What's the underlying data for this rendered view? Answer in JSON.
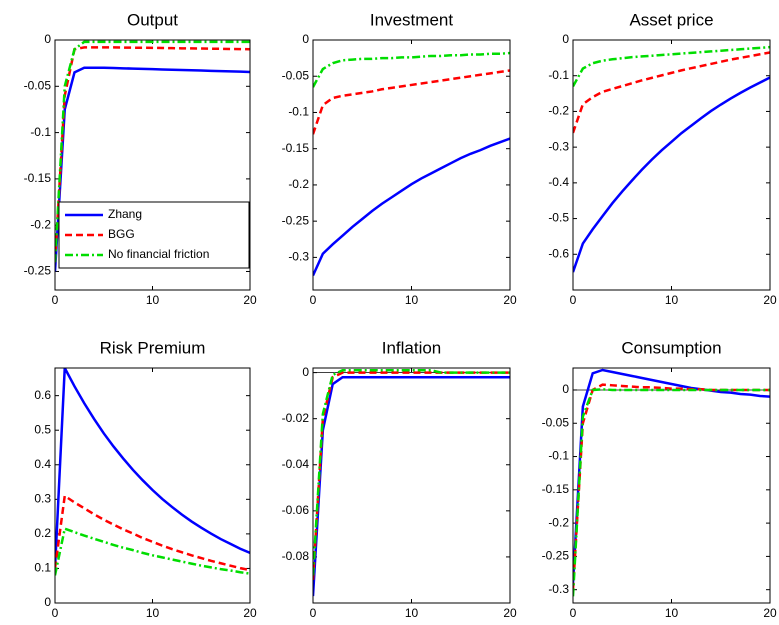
{
  "chart_data": [
    {
      "type": "line",
      "title": "Output",
      "xlim": [
        0,
        20
      ],
      "xticks": [
        0,
        10,
        20
      ],
      "ylim": [
        -0.27,
        0
      ],
      "yticks": [
        0,
        -0.05,
        -0.1,
        -0.15,
        -0.2,
        -0.25
      ],
      "legend": "lower left",
      "x": [
        0,
        1,
        2,
        3,
        4,
        5,
        6,
        7,
        8,
        9,
        10,
        11,
        12,
        13,
        14,
        15,
        16,
        17,
        18,
        19,
        20
      ],
      "series": [
        {
          "name": "Zhang",
          "color": "#0000ff",
          "style": "solid",
          "values": [
            -0.25,
            -0.075,
            -0.035,
            -0.03,
            -0.03,
            -0.03,
            -0.0303,
            -0.0306,
            -0.0309,
            -0.0312,
            -0.0315,
            -0.0318,
            -0.0321,
            -0.0324,
            -0.0327,
            -0.033,
            -0.0333,
            -0.0336,
            -0.0339,
            -0.0342,
            -0.0345
          ]
        },
        {
          "name": "BGG",
          "color": "#ff0000",
          "style": "dashed",
          "values": [
            -0.24,
            -0.06,
            -0.01,
            -0.008,
            -0.008,
            -0.008,
            -0.008,
            -0.0082,
            -0.0083,
            -0.0084,
            -0.0085,
            -0.0086,
            -0.0088,
            -0.009,
            -0.0091,
            -0.0092,
            -0.0094,
            -0.0095,
            -0.0097,
            -0.0098,
            -0.01
          ]
        },
        {
          "name": "No financial friction",
          "color": "#00dd00",
          "style": "dashdot",
          "values": [
            -0.24,
            -0.05,
            -0.01,
            -0.002,
            -0.002,
            -0.002,
            -0.002,
            -0.002,
            -0.002,
            -0.002,
            -0.002,
            -0.002,
            -0.002,
            -0.002,
            -0.002,
            -0.002,
            -0.002,
            -0.002,
            -0.002,
            -0.002,
            -0.002
          ]
        }
      ]
    },
    {
      "type": "line",
      "title": "Investment",
      "xlim": [
        0,
        20
      ],
      "xticks": [
        0,
        10,
        20
      ],
      "ylim": [
        -0.345,
        0
      ],
      "yticks": [
        0,
        -0.05,
        -0.1,
        -0.15,
        -0.2,
        -0.25,
        -0.3
      ],
      "x": [
        0,
        1,
        2,
        3,
        4,
        5,
        6,
        7,
        8,
        9,
        10,
        11,
        12,
        13,
        14,
        15,
        16,
        17,
        18,
        19,
        20
      ],
      "series": [
        {
          "color": "#0000ff",
          "style": "solid",
          "values": [
            -0.325,
            -0.295,
            -0.282,
            -0.27,
            -0.258,
            -0.247,
            -0.236,
            -0.226,
            -0.217,
            -0.208,
            -0.199,
            -0.191,
            -0.184,
            -0.177,
            -0.17,
            -0.163,
            -0.157,
            -0.152,
            -0.146,
            -0.141,
            -0.136
          ]
        },
        {
          "color": "#ff0000",
          "style": "dashed",
          "values": [
            -0.13,
            -0.09,
            -0.08,
            -0.077,
            -0.075,
            -0.073,
            -0.071,
            -0.068,
            -0.066,
            -0.064,
            -0.062,
            -0.06,
            -0.058,
            -0.056,
            -0.054,
            -0.052,
            -0.05,
            -0.048,
            -0.046,
            -0.044,
            -0.042
          ]
        },
        {
          "color": "#00dd00",
          "style": "dashdot",
          "values": [
            -0.065,
            -0.04,
            -0.032,
            -0.028,
            -0.027,
            -0.026,
            -0.026,
            -0.025,
            -0.025,
            -0.024,
            -0.024,
            -0.023,
            -0.022,
            -0.022,
            -0.021,
            -0.021,
            -0.02,
            -0.02,
            -0.019,
            -0.019,
            -0.018
          ]
        }
      ]
    },
    {
      "type": "line",
      "title": "Asset price",
      "xlim": [
        0,
        20
      ],
      "xticks": [
        0,
        10,
        20
      ],
      "ylim": [
        -0.7,
        0
      ],
      "yticks": [
        0,
        -0.1,
        -0.2,
        -0.3,
        -0.4,
        -0.5,
        -0.6
      ],
      "x": [
        0,
        1,
        2,
        3,
        4,
        5,
        6,
        7,
        8,
        9,
        10,
        11,
        12,
        13,
        14,
        15,
        16,
        17,
        18,
        19,
        20
      ],
      "series": [
        {
          "color": "#0000ff",
          "style": "solid",
          "values": [
            -0.65,
            -0.57,
            -0.53,
            -0.493,
            -0.457,
            -0.424,
            -0.393,
            -0.363,
            -0.335,
            -0.309,
            -0.285,
            -0.261,
            -0.24,
            -0.219,
            -0.199,
            -0.181,
            -0.164,
            -0.148,
            -0.133,
            -0.119,
            -0.105
          ]
        },
        {
          "color": "#ff0000",
          "style": "dashed",
          "values": [
            -0.26,
            -0.18,
            -0.16,
            -0.145,
            -0.137,
            -0.129,
            -0.121,
            -0.113,
            -0.106,
            -0.099,
            -0.092,
            -0.085,
            -0.079,
            -0.073,
            -0.067,
            -0.061,
            -0.055,
            -0.05,
            -0.045,
            -0.04,
            -0.035
          ]
        },
        {
          "color": "#00dd00",
          "style": "dashdot",
          "values": [
            -0.13,
            -0.08,
            -0.065,
            -0.058,
            -0.054,
            -0.051,
            -0.048,
            -0.046,
            -0.044,
            -0.042,
            -0.04,
            -0.038,
            -0.036,
            -0.034,
            -0.032,
            -0.03,
            -0.028,
            -0.026,
            -0.024,
            -0.022,
            -0.02
          ]
        }
      ]
    },
    {
      "type": "line",
      "title": "Risk Premium",
      "xlim": [
        0,
        20
      ],
      "xticks": [
        0,
        10,
        20
      ],
      "ylim": [
        0,
        0.68
      ],
      "yticks": [
        0,
        0.1,
        0.2,
        0.3,
        0.4,
        0.5,
        0.6
      ],
      "x": [
        0,
        1,
        2,
        3,
        4,
        5,
        6,
        7,
        8,
        9,
        10,
        11,
        12,
        13,
        14,
        15,
        16,
        17,
        18,
        19,
        20
      ],
      "series": [
        {
          "color": "#0000ff",
          "style": "solid",
          "values": [
            0.1,
            0.68,
            0.627,
            0.578,
            0.533,
            0.491,
            0.453,
            0.418,
            0.385,
            0.355,
            0.327,
            0.301,
            0.278,
            0.256,
            0.236,
            0.218,
            0.201,
            0.185,
            0.171,
            0.157,
            0.145
          ]
        },
        {
          "color": "#ff0000",
          "style": "dashed",
          "values": [
            0.1,
            0.31,
            0.291,
            0.274,
            0.257,
            0.241,
            0.227,
            0.213,
            0.201,
            0.188,
            0.177,
            0.166,
            0.156,
            0.147,
            0.138,
            0.13,
            0.122,
            0.115,
            0.108,
            0.101,
            0.095
          ]
        },
        {
          "color": "#00dd00",
          "style": "dashdot",
          "values": [
            0.08,
            0.215,
            0.205,
            0.195,
            0.186,
            0.177,
            0.168,
            0.16,
            0.153,
            0.145,
            0.138,
            0.132,
            0.126,
            0.12,
            0.114,
            0.108,
            0.103,
            0.098,
            0.094,
            0.089,
            0.085
          ]
        }
      ]
    },
    {
      "type": "line",
      "title": "Inflation",
      "xlim": [
        0,
        20
      ],
      "xticks": [
        0,
        10,
        20
      ],
      "ylim": [
        -0.1,
        0.002
      ],
      "yticks": [
        0,
        -0.02,
        -0.04,
        -0.06,
        -0.08
      ],
      "x": [
        0,
        1,
        2,
        3,
        4,
        5,
        6,
        7,
        8,
        9,
        10,
        11,
        12,
        13,
        14,
        15,
        16,
        17,
        18,
        19,
        20
      ],
      "series": [
        {
          "color": "#0000ff",
          "style": "solid",
          "values": [
            -0.097,
            -0.025,
            -0.005,
            -0.002,
            -0.002,
            -0.002,
            -0.002,
            -0.002,
            -0.002,
            -0.002,
            -0.002,
            -0.002,
            -0.002,
            -0.002,
            -0.002,
            -0.002,
            -0.002,
            -0.002,
            -0.002,
            -0.002,
            -0.002
          ]
        },
        {
          "color": "#ff0000",
          "style": "dashed",
          "values": [
            -0.09,
            -0.02,
            -0.002,
            0,
            0,
            0,
            0,
            0,
            0,
            0,
            0,
            0,
            0,
            0,
            0,
            0,
            0,
            0,
            0,
            0,
            0
          ]
        },
        {
          "color": "#00dd00",
          "style": "dashdot",
          "values": [
            -0.088,
            -0.018,
            -0.001,
            0.001,
            0.001,
            0.001,
            0.001,
            0.001,
            0.001,
            0.001,
            0.001,
            0.001,
            0.001,
            0,
            0,
            0,
            0,
            0,
            0,
            0,
            0
          ]
        }
      ]
    },
    {
      "type": "line",
      "title": "Consumption",
      "xlim": [
        0,
        20
      ],
      "xticks": [
        0,
        10,
        20
      ],
      "ylim": [
        -0.32,
        0.033
      ],
      "yticks": [
        0,
        -0.05,
        -0.1,
        -0.15,
        -0.2,
        -0.25,
        -0.3
      ],
      "x": [
        0,
        1,
        2,
        3,
        4,
        5,
        6,
        7,
        8,
        9,
        10,
        11,
        12,
        13,
        14,
        15,
        16,
        17,
        18,
        19,
        20
      ],
      "series": [
        {
          "color": "#0000ff",
          "style": "solid",
          "values": [
            -0.29,
            -0.025,
            0.025,
            0.03,
            0.027,
            0.024,
            0.021,
            0.018,
            0.015,
            0.012,
            0.009,
            0.006,
            0.003,
            0.001,
            -0.001,
            -0.003,
            -0.004,
            -0.006,
            -0.007,
            -0.009,
            -0.01
          ]
        },
        {
          "color": "#ff0000",
          "style": "dashed",
          "values": [
            -0.3,
            -0.05,
            0,
            0.008,
            0.007,
            0.006,
            0.005,
            0.004,
            0.004,
            0.003,
            0.002,
            0.002,
            0.001,
            0.001,
            0,
            0,
            0,
            0,
            0,
            0,
            0
          ]
        },
        {
          "color": "#00dd00",
          "style": "dashdot",
          "values": [
            -0.31,
            -0.04,
            0,
            0.001,
            0,
            0,
            0,
            0,
            0,
            0,
            0,
            0,
            0,
            0,
            0,
            0,
            0,
            0,
            0,
            0,
            0
          ]
        }
      ]
    }
  ]
}
